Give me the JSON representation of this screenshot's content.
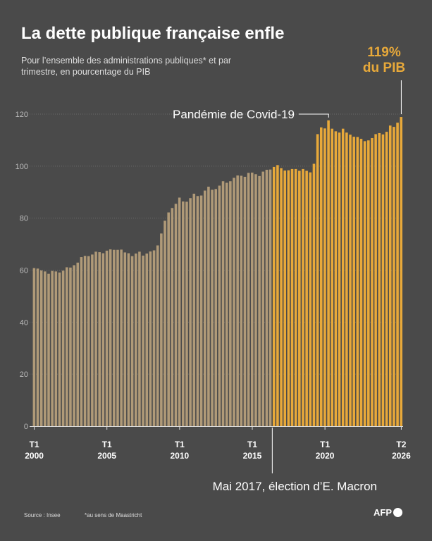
{
  "header": {
    "title": "La dette publique française enfle",
    "subtitle": "Pour l’ensemble des administrations publiques* et par trimestre, en pourcentage du PIB"
  },
  "callout": {
    "line1": "119%",
    "line2": "du PIB"
  },
  "footer": {
    "source": "Source : Insee",
    "note": "*au sens de Maastricht",
    "logo": "AFP"
  },
  "colors": {
    "background": "#4a4a4a",
    "before_2017": "#b09a78",
    "since_2017": "#e8a93a"
  },
  "chart_data": {
    "type": "bar",
    "ylim": [
      0,
      120
    ],
    "yticks": [
      0,
      20,
      40,
      60,
      80,
      100,
      120
    ],
    "grid": true,
    "xtick_labels": [
      {
        "index": 0,
        "label": "T1\n2000"
      },
      {
        "index": 20,
        "label": "T1\n2005"
      },
      {
        "index": 40,
        "label": "T1\n2010"
      },
      {
        "index": 60,
        "label": "T1\n2015"
      },
      {
        "index": 80,
        "label": "T1\n2020"
      },
      {
        "index": 101,
        "label": "T2\n2026"
      }
    ],
    "highlight_from_index": 66,
    "annotations": [
      {
        "text": "Pandémie de Covid-19",
        "index": 81
      },
      {
        "text": "Mai 2017, élection d’E. Macron",
        "index": 66
      }
    ],
    "values": [
      60.8,
      60.6,
      59.9,
      59.5,
      58.6,
      59.7,
      59.5,
      59.1,
      59.8,
      61.1,
      61.0,
      61.9,
      62.9,
      65.0,
      65.5,
      65.4,
      66.0,
      67.1,
      66.9,
      66.5,
      67.5,
      68.0,
      67.8,
      67.8,
      67.9,
      66.8,
      66.5,
      65.4,
      66.4,
      67.1,
      65.6,
      66.4,
      67.2,
      67.6,
      69.5,
      74.1,
      79.0,
      82.2,
      83.9,
      85.5,
      87.9,
      86.4,
      86.3,
      87.7,
      89.4,
      88.5,
      88.7,
      90.6,
      92.1,
      90.9,
      91.2,
      92.5,
      94.2,
      93.6,
      94.2,
      95.5,
      96.4,
      96.3,
      95.9,
      97.4,
      97.5,
      96.9,
      96.2,
      97.9,
      98.6,
      98.7,
      99.7,
      100.4,
      99.2,
      98.3,
      98.4,
      98.9,
      98.9,
      98.2,
      98.9,
      98.2,
      97.6,
      100.9,
      112.3,
      114.9,
      114.5,
      117.6,
      114.4,
      113.4,
      112.9,
      114.4,
      112.9,
      112.1,
      111.3,
      111.2,
      110.5,
      109.6,
      109.9,
      110.8,
      112.3,
      112.7,
      112.2,
      113.2,
      115.6,
      115.1,
      116.7,
      118.9
    ]
  }
}
